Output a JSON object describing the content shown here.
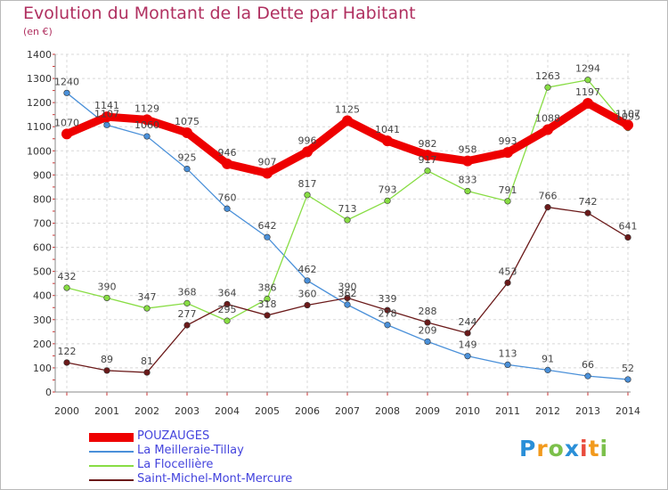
{
  "header": {
    "title": "Evolution du Montant de la Dette par Habitant",
    "unit": "(en €)"
  },
  "brand": {
    "text": "Proxiti",
    "letters": [
      {
        "ch": "P",
        "color": "#2a8fd8"
      },
      {
        "ch": "r",
        "color": "#f29a1d"
      },
      {
        "ch": "o",
        "color": "#7cc04b"
      },
      {
        "ch": "x",
        "color": "#2a8fd8"
      },
      {
        "ch": "i",
        "color": "#e84b3c"
      },
      {
        "ch": "t",
        "color": "#f29a1d"
      },
      {
        "ch": "i",
        "color": "#7cc04b"
      }
    ]
  },
  "chart_data": {
    "type": "line",
    "title": "Evolution du Montant de la Dette par Habitant",
    "subtitle": "(en €)",
    "x": [
      2000,
      2001,
      2002,
      2003,
      2004,
      2005,
      2006,
      2007,
      2008,
      2009,
      2010,
      2011,
      2012,
      2013,
      2014
    ],
    "ylim": [
      0,
      1400
    ],
    "yticks": [
      0,
      100,
      200,
      300,
      400,
      500,
      600,
      700,
      800,
      900,
      1000,
      1100,
      1200,
      1300,
      1400
    ],
    "grid": true,
    "legend_position": "bottom-left",
    "series": [
      {
        "name": "POUZAUGES",
        "color": "#ee0000",
        "highlight": true,
        "values": [
          1070,
          1141,
          1129,
          1075,
          946,
          907,
          996,
          1125,
          1041,
          982,
          958,
          993,
          1088,
          1197,
          1107
        ]
      },
      {
        "name": "La Meilleraie-Tillay",
        "color": "#4a90d9",
        "highlight": false,
        "values": [
          1240,
          1107,
          1060,
          925,
          760,
          642,
          462,
          362,
          278,
          209,
          149,
          113,
          91,
          66,
          52
        ]
      },
      {
        "name": "La Flocellière",
        "color": "#88dd44",
        "highlight": false,
        "values": [
          432,
          390,
          347,
          368,
          295,
          386,
          817,
          713,
          793,
          917,
          833,
          791,
          1263,
          1294,
          1095
        ]
      },
      {
        "name": "Saint-Michel-Mont-Mercure",
        "color": "#6b1a1a",
        "highlight": false,
        "values": [
          122,
          89,
          81,
          277,
          364,
          318,
          360,
          390,
          339,
          288,
          244,
          453,
          766,
          742,
          641
        ]
      }
    ]
  }
}
